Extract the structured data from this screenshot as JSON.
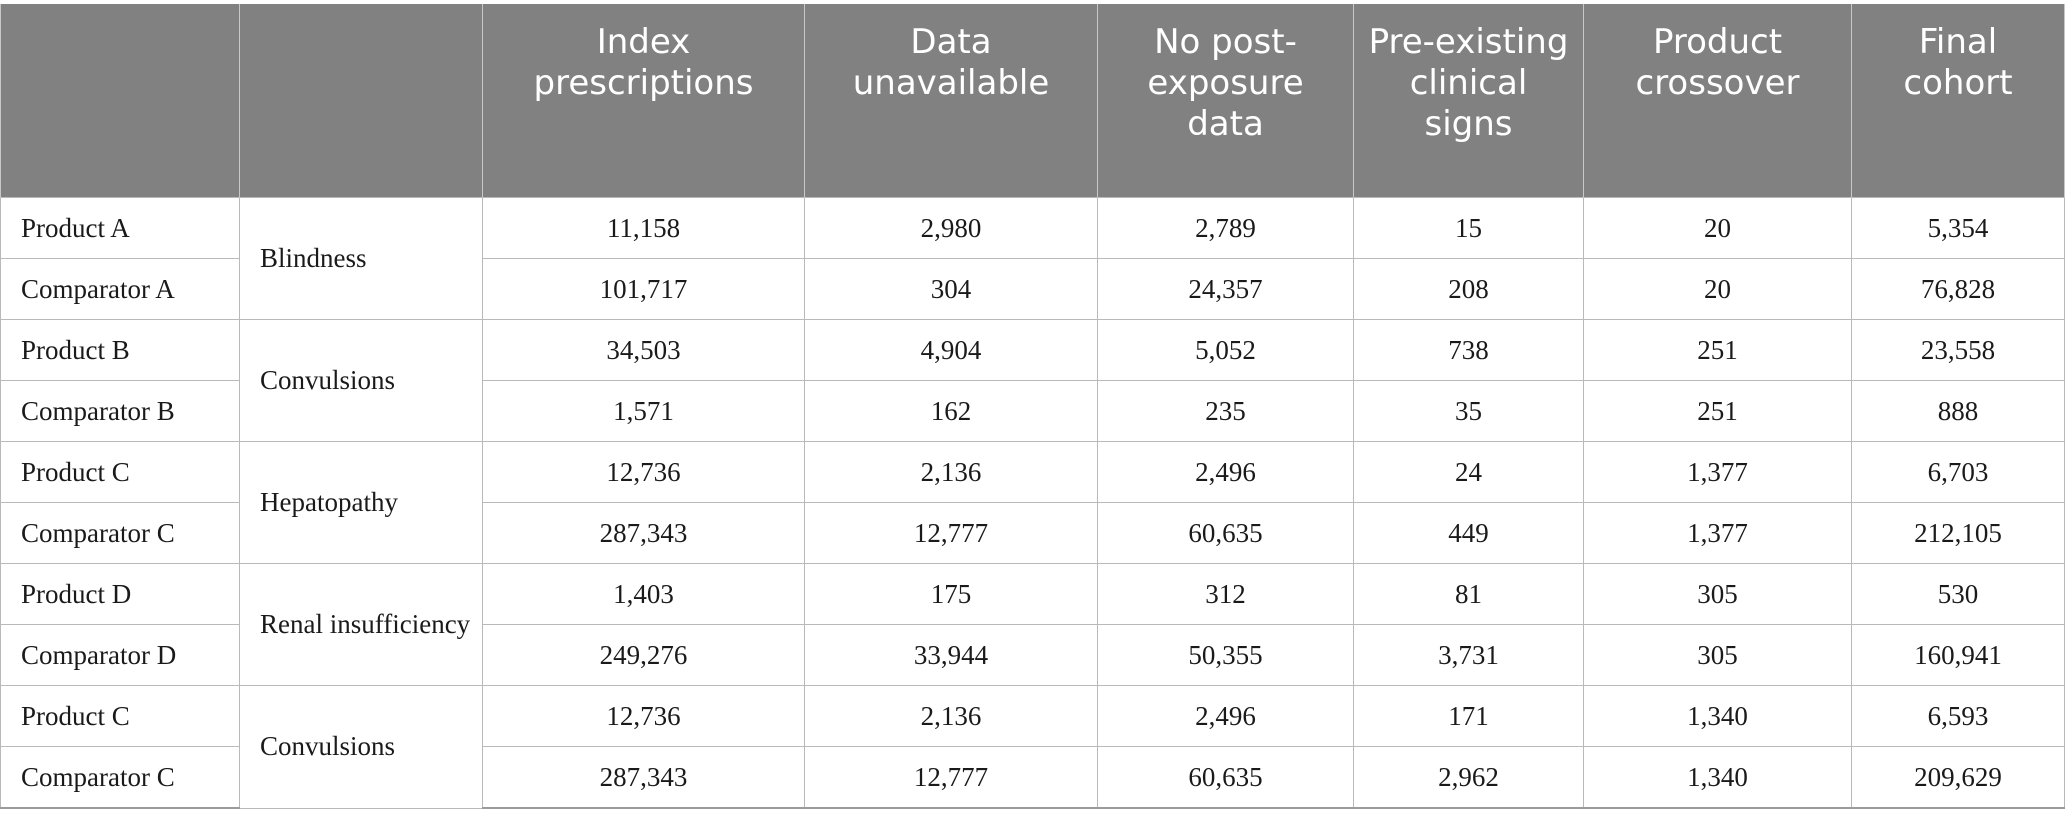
{
  "table": {
    "headers": [
      "",
      "",
      "Index prescriptions",
      "Data unavailable",
      "No post-exposure data",
      "Pre-existing clinical signs",
      "Product crossover",
      "Final cohort"
    ],
    "groups": [
      {
        "event": "Blindness",
        "rows": [
          {
            "product": "Product A",
            "values": [
              "11,158",
              "2,980",
              "2,789",
              "15",
              "20",
              "5,354"
            ]
          },
          {
            "product": "Comparator A",
            "values": [
              "101,717",
              "304",
              "24,357",
              "208",
              "20",
              "76,828"
            ]
          }
        ]
      },
      {
        "event": "Convulsions",
        "rows": [
          {
            "product": "Product B",
            "values": [
              "34,503",
              "4,904",
              "5,052",
              "738",
              "251",
              "23,558"
            ]
          },
          {
            "product": "Comparator B",
            "values": [
              "1,571",
              "162",
              "235",
              "35",
              "251",
              "888"
            ]
          }
        ]
      },
      {
        "event": "Hepatopathy",
        "rows": [
          {
            "product": "Product C",
            "values": [
              "12,736",
              "2,136",
              "2,496",
              "24",
              "1,377",
              "6,703"
            ]
          },
          {
            "product": "Comparator C",
            "values": [
              "287,343",
              "12,777",
              "60,635",
              "449",
              "1,377",
              "212,105"
            ]
          }
        ]
      },
      {
        "event": "Renal insufficiency",
        "rows": [
          {
            "product": "Product D",
            "values": [
              "1,403",
              "175",
              "312",
              "81",
              "305",
              "530"
            ]
          },
          {
            "product": "Comparator D",
            "values": [
              "249,276",
              "33,944",
              "50,355",
              "3,731",
              "305",
              "160,941"
            ]
          }
        ]
      },
      {
        "event": "Convulsions",
        "rows": [
          {
            "product": "Product C",
            "values": [
              "12,736",
              "2,136",
              "2,496",
              "171",
              "1,340",
              "6,593"
            ]
          },
          {
            "product": "Comparator C",
            "values": [
              "287,343",
              "12,777",
              "60,635",
              "2,962",
              "1,340",
              "209,629"
            ]
          }
        ]
      }
    ]
  },
  "colors": {
    "header_bg": "#808180",
    "header_text": "#ffffff",
    "grid": "#b9b9b9"
  }
}
